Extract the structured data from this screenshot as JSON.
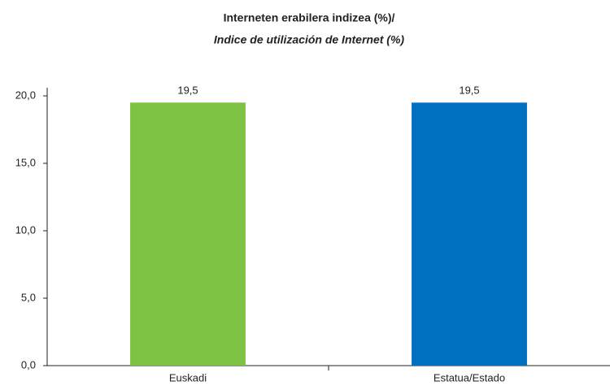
{
  "chart_data": {
    "type": "bar",
    "title": "Interneten erabilera indizea (%)/",
    "subtitle": "Indice de utilización de Internet (%)",
    "categories": [
      "Euskadi",
      "Estatua/Estado"
    ],
    "values": [
      19.5,
      19.5
    ],
    "value_labels": [
      "19,5",
      "19,5"
    ],
    "colors": [
      "#7dc242",
      "#0070c0"
    ],
    "ylim": [
      0,
      20
    ],
    "yticks": [
      {
        "value": 0,
        "label": "0,0"
      },
      {
        "value": 5,
        "label": "5,0"
      },
      {
        "value": 10,
        "label": "10,0"
      },
      {
        "value": 15,
        "label": "15,0"
      },
      {
        "value": 20,
        "label": "20,0"
      }
    ]
  }
}
